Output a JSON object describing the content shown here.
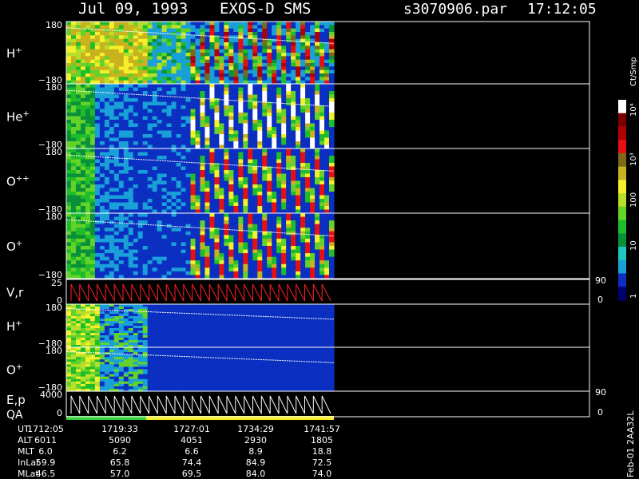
{
  "header": {
    "date": "Jul 09, 1993",
    "instrument": "EXOS-D SMS",
    "file": "s3070906.par",
    "time": "17:12:05"
  },
  "colorbar": {
    "unit": "Ct/Smp",
    "ticks": [
      "10⁴",
      "10³",
      "100",
      "10",
      "1"
    ],
    "colors": [
      "#000070",
      "#0b2fc0",
      "#1aa0d8",
      "#1ec7c0",
      "#0a8f3b",
      "#1fbd2a",
      "#63d32a",
      "#b8e02a",
      "#f5f02a",
      "#c8b21e",
      "#7c6a16",
      "#e61010",
      "#b00000",
      "#7a0000",
      "#ffffff"
    ]
  },
  "chart_data": {
    "type": "heatmap",
    "panels": [
      {
        "label": "H",
        "sup": "+",
        "ymax": "180",
        "ymin": "−180",
        "kind": "spectrogram",
        "style": "full"
      },
      {
        "label": "He",
        "sup": "+",
        "ymax": "180",
        "ymin": "−180",
        "kind": "spectrogram",
        "style": "he"
      },
      {
        "label": "O",
        "sup": "++",
        "ymax": "180",
        "ymin": "−180",
        "kind": "spectrogram",
        "style": "opp"
      },
      {
        "label": "O",
        "sup": "+",
        "ymax": "180",
        "ymin": "−180",
        "kind": "spectrogram",
        "style": "op"
      },
      {
        "label": "V,r",
        "sup": "",
        "ymax": "25",
        "ymin": "0",
        "kind": "line",
        "right_max": "90",
        "right_min": "0"
      },
      {
        "label": "H",
        "sup": "+",
        "ymax": "180",
        "ymin": "−180",
        "kind": "spectrogram",
        "style": "low"
      },
      {
        "label": "O",
        "sup": "+",
        "ymax": "180",
        "ymin": "−180",
        "kind": "spectrogram",
        "style": "low2"
      },
      {
        "label": "E,p",
        "label2": "QA",
        "sup": "",
        "ymax": "4000",
        "ymin": "0",
        "kind": "line",
        "right_max": "90",
        "right_min": "0"
      }
    ],
    "x_labels": {
      "UT": [
        "1712:05",
        "1719:33",
        "1727:01",
        "1734:29",
        "1741:57"
      ],
      "ALT": [
        "6011",
        "5090",
        "4051",
        "2930",
        "1805"
      ],
      "MLT": [
        "6.0",
        "6.2",
        "6.6",
        "8.9",
        "18.8"
      ],
      "InLat": [
        "59.9",
        "65.8",
        "74.4",
        "84.9",
        "72.5"
      ],
      "MLat": [
        "46.5",
        "57.0",
        "69.5",
        "84.0",
        "74.0"
      ]
    },
    "row_names": [
      "UT",
      "ALT",
      "MLT",
      "InLat",
      "MLat"
    ],
    "x_ticks": [
      "17:12",
      "17:19",
      "17:27",
      "17:34",
      "17:41"
    ]
  },
  "footer": {
    "version": "Feb-01 2AA32L"
  }
}
